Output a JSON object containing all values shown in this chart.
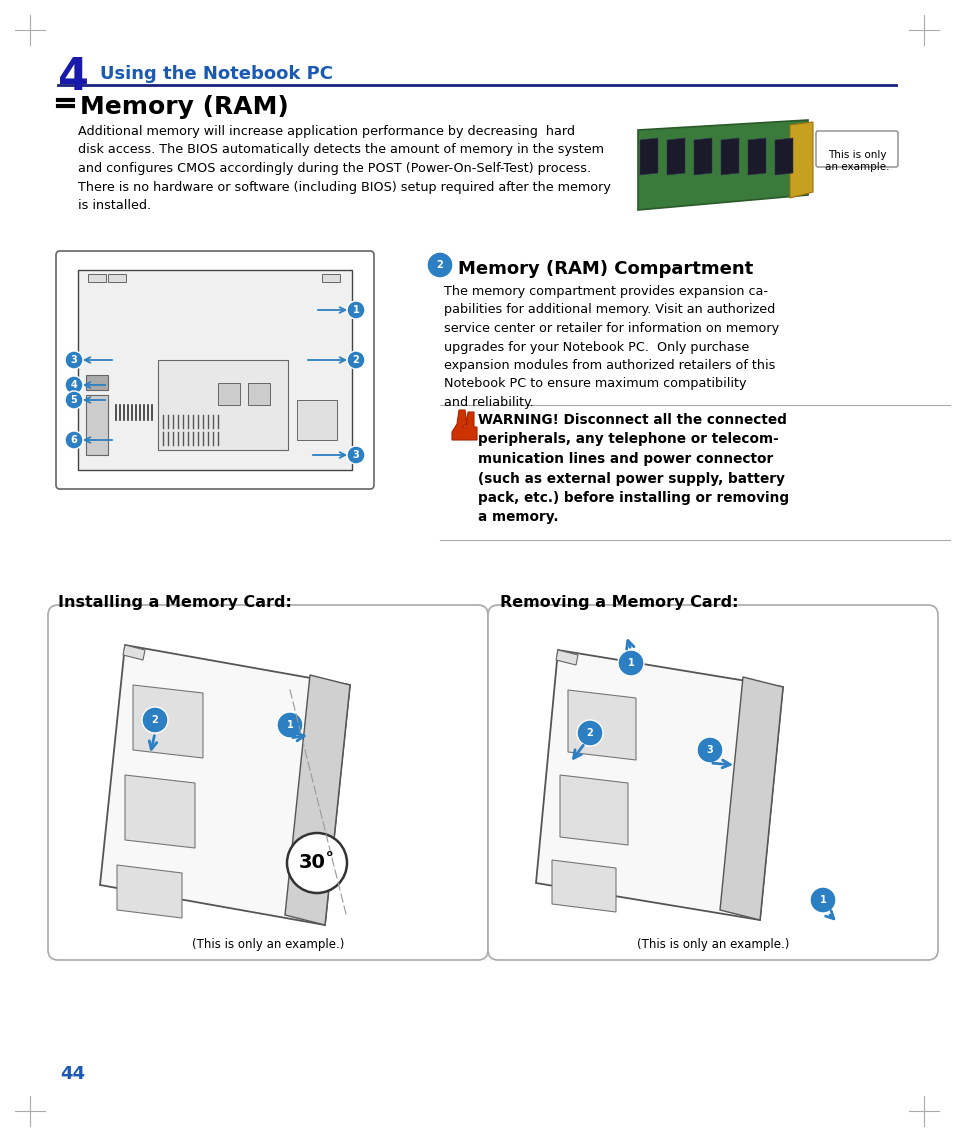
{
  "page_bg": "#ffffff",
  "chapter_num": "4",
  "chapter_num_color": "#1a1aaa",
  "chapter_title": "Using the Notebook PC",
  "chapter_title_color": "#1a5ab5",
  "section_title": "Memory (RAM)",
  "body_text1": "Additional memory will increase application performance by decreasing  hard\ndisk access. The BIOS automatically detects the amount of memory in the system\nand configures CMOS accordingly during the POST (Power-On-Self-Test) process.\nThere is no hardware or software (including BIOS) setup required after the memory\nis installed.",
  "ram_image_caption": "This is only\nan example.",
  "compartment_title": "Memory (RAM) Compartment",
  "compartment_text": "The memory compartment provides expansion ca-\npabilities for additional memory. Visit an authorized\nservice center or retailer for information on memory\nupgrades for your Notebook PC.  Only purchase\nexpansion modules from authorized retailers of this\nNotebook PC to ensure maximum compatibility\nand reliability.",
  "warning_text": "WARNING! Disconnect all the connected\nperipherals, any telephone or telecom-\nmunication lines and power connector\n(such as external power supply, battery\npack, etc.) before installing or removing\na memory.",
  "install_title": "Installing a Memory Card:",
  "remove_title": "Removing a Memory Card:",
  "example_caption": "(This is only an example.)",
  "blue_color": "#2b7fc2",
  "dark_blue": "#1a237e",
  "page_number": "44",
  "page_number_color": "#1a5ab5",
  "line_color": "#1a237e",
  "border_color": "#888888"
}
